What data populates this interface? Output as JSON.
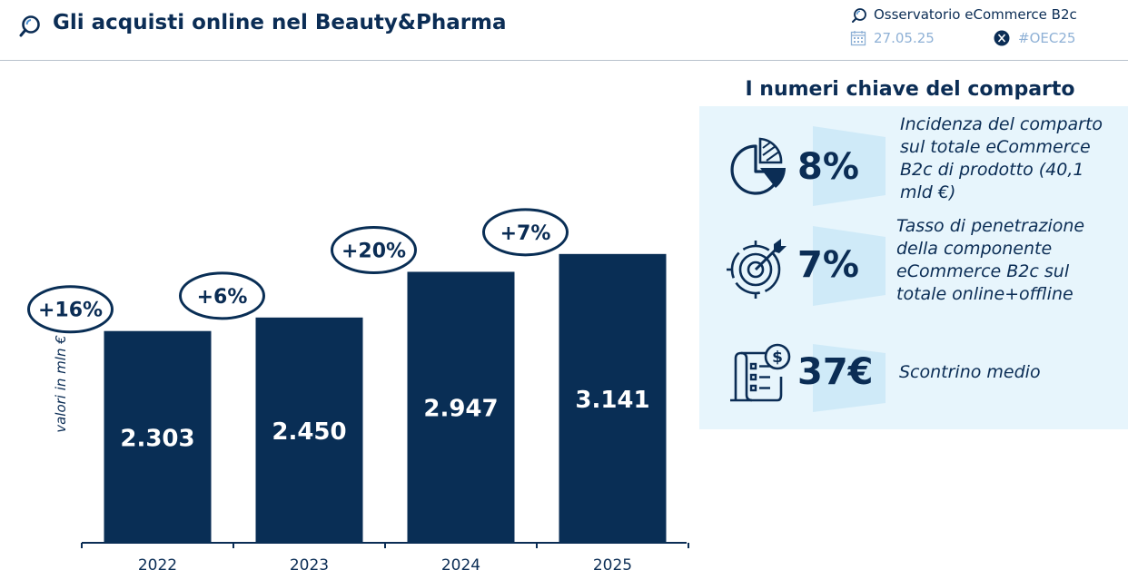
{
  "header": {
    "title": "Gli acquisti online nel Beauty&Pharma",
    "source": "Osservatorio eCommerce B2c",
    "date": "27.05.25",
    "hashtag": "#OEC25"
  },
  "kpi_panel": {
    "title": "I numeri chiave del comparto",
    "items": [
      {
        "icon": "pie-chart-icon",
        "value": "8%",
        "lines": [
          "Incidenza del comparto",
          "sul totale eCommerce",
          "B2c di prodotto (40,1",
          "mld €)"
        ]
      },
      {
        "icon": "target-icon",
        "value": "7%",
        "lines": [
          "Tasso di penetrazione",
          "della componente",
          "eCommerce B2c sul",
          "totale online+offline"
        ]
      },
      {
        "icon": "receipt-icon",
        "value": "37€",
        "lines": [
          "Scontrino medio"
        ]
      }
    ]
  },
  "colors": {
    "bar": "#092e55",
    "text": "#0b2d55",
    "panel_bg": "#e7f5fc",
    "band": "#cfeaf8",
    "muted": "#8fb1d6"
  },
  "chart_data": {
    "type": "bar",
    "ylabel": "valori in mln €",
    "categories": [
      "2022",
      "2023",
      "2024",
      "2025"
    ],
    "values": [
      2303,
      2450,
      2947,
      3141
    ],
    "value_labels": [
      "2.303",
      "2.450",
      "2.947",
      "3.141"
    ],
    "growth_labels": [
      "+16%",
      "+6%",
      "+20%",
      "+7%"
    ],
    "ylim": [
      0,
      3500
    ],
    "grid": false,
    "legend": "none"
  }
}
